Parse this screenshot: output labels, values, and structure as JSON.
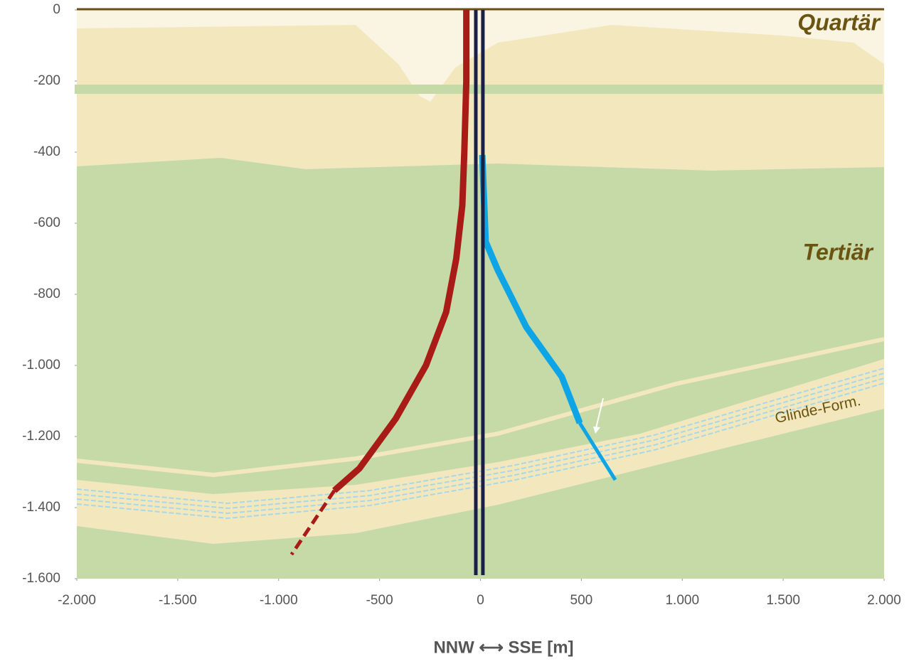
{
  "chart_data": {
    "type": "line",
    "annotations": [
      "Quartär",
      "Tertiär",
      "Glinde-Form."
    ],
    "x_label": "NNW   ⟷   SSE   [m]",
    "xlim": [
      -2000,
      2000
    ],
    "ylim": [
      -1600,
      0
    ],
    "xticks": [
      {
        "value": -2000,
        "label": "-2.000"
      },
      {
        "value": -1500,
        "label": "-1.500"
      },
      {
        "value": -1000,
        "label": "-1.000"
      },
      -500,
      0,
      500,
      {
        "value": 1000,
        "label": "1.000"
      },
      {
        "value": 1500,
        "label": "1.500"
      },
      {
        "value": 2000,
        "label": "2.000"
      }
    ],
    "yticks": [
      0,
      -200,
      -400,
      -600,
      -800,
      {
        "value": -1000,
        "label": "-1.000"
      },
      {
        "value": -1200,
        "label": "-1.200"
      },
      {
        "value": -1400,
        "label": "-1.400"
      },
      {
        "value": -1600,
        "label": "-1.600"
      }
    ],
    "series": [
      {
        "color": "#a91b16",
        "width": 9,
        "dashed": false,
        "x": [
          -70,
          -70,
          -80,
          -90,
          -120,
          -170,
          -270,
          -420,
          -600,
          -724
        ],
        "values": [
          0,
          -200,
          -400,
          -550,
          -700,
          -850,
          -1000,
          -1150,
          -1290,
          -1352
        ]
      },
      {
        "color": "#a91b16",
        "width": 5,
        "dashed": true,
        "x": [
          -724,
          -936
        ],
        "values": [
          -1352,
          -1532
        ]
      },
      {
        "color": "#0ea5e6",
        "width": 9,
        "dashed": false,
        "x": [
          9,
          26,
          86,
          227,
          403,
          492
        ],
        "values": [
          -408,
          -652,
          -732,
          -892,
          -1032,
          -1162
        ]
      },
      {
        "color": "#0ea5e6",
        "width": 5,
        "dashed": false,
        "x": [
          492,
          668
        ],
        "values": [
          -1162,
          -1322
        ]
      },
      {
        "color": "#1a1f45",
        "width": 5,
        "dashed": false,
        "x": [
          -23,
          -23
        ],
        "values": [
          0,
          -1590
        ]
      },
      {
        "color": "#1a1f45",
        "width": 5,
        "dashed": false,
        "x": [
          12,
          12
        ],
        "values": [
          0,
          -1590
        ]
      }
    ]
  }
}
